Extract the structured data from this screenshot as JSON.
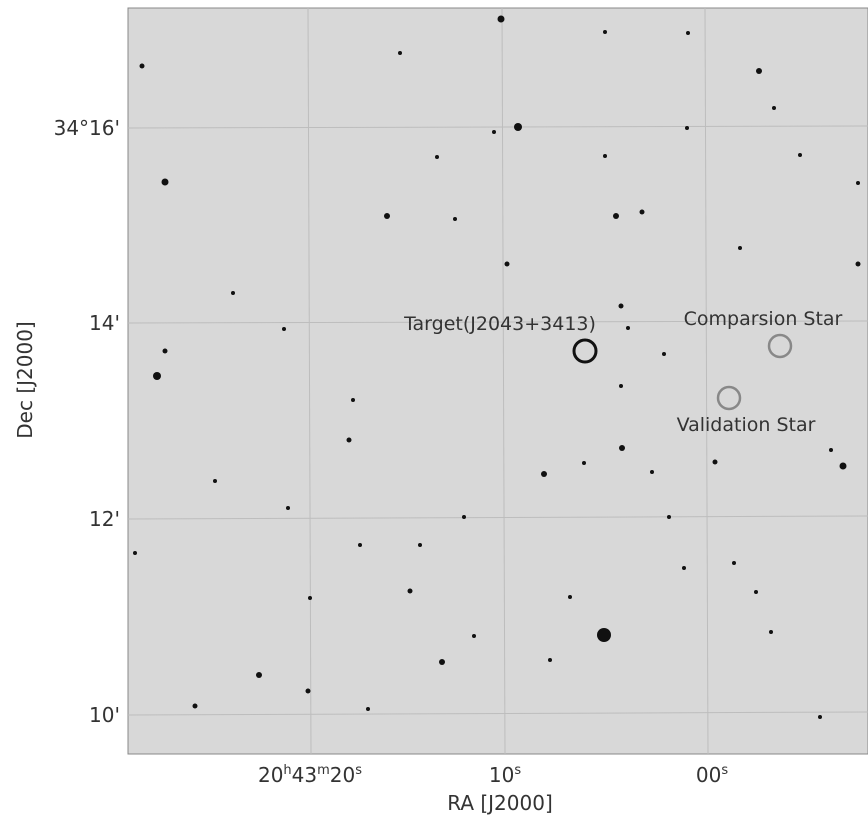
{
  "plot": {
    "y_axis_label": "Dec [J2000]",
    "x_axis_label": "RA [J2000]",
    "y_ticks": [
      "34°16'",
      "14'",
      "12'",
      "10'"
    ],
    "x_ticks": [
      [
        {
          "text": "20"
        },
        {
          "sup": "h"
        },
        {
          "text": "43"
        },
        {
          "sup": "m"
        },
        {
          "text": "20"
        },
        {
          "sup": "s"
        }
      ],
      [
        {
          "text": "10"
        },
        {
          "sup": "s"
        }
      ],
      [
        {
          "text": "00"
        },
        {
          "sup": "s"
        }
      ]
    ],
    "annotations": {
      "target": "Target(J2043+3413)",
      "comparison": "Comparsion Star",
      "validation": "Validation Star"
    }
  }
}
